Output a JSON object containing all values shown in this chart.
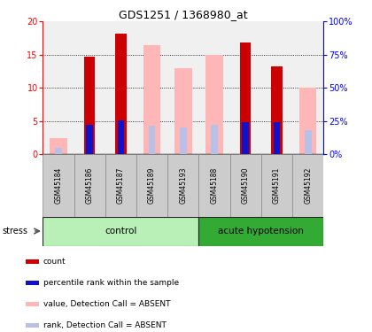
{
  "title": "GDS1251 / 1368980_at",
  "samples": [
    "GSM45184",
    "GSM45186",
    "GSM45187",
    "GSM45189",
    "GSM45193",
    "GSM45188",
    "GSM45190",
    "GSM45191",
    "GSM45192"
  ],
  "count_values": [
    0,
    14.7,
    18.2,
    0,
    0,
    0,
    16.8,
    13.3,
    0
  ],
  "rank_values": [
    0,
    4.5,
    5.1,
    0,
    0,
    0,
    4.8,
    4.8,
    0
  ],
  "absent_value_values": [
    2.4,
    0,
    0,
    16.5,
    13.0,
    15.0,
    0,
    0,
    10.0
  ],
  "absent_rank_values": [
    1.0,
    0,
    0,
    4.3,
    4.0,
    4.5,
    0,
    0,
    3.7
  ],
  "ylim": [
    0,
    20
  ],
  "yticks_left": [
    0,
    5,
    10,
    15,
    20
  ],
  "ytick_labels_right": [
    "0%",
    "25%",
    "50%",
    "75%",
    "100%"
  ],
  "count_color": "#cc0000",
  "rank_color": "#1111cc",
  "absent_value_color": "#ffb6b6",
  "absent_rank_color": "#b8c0e8",
  "control_color_light": "#b8f0b8",
  "control_color_dark": "#44cc44",
  "hypotension_color_light": "#66dd66",
  "hypotension_color_dark": "#33aa33",
  "sample_cell_color": "#cccccc",
  "background_color": "#ffffff",
  "chart_bg": "#f0f0f0"
}
